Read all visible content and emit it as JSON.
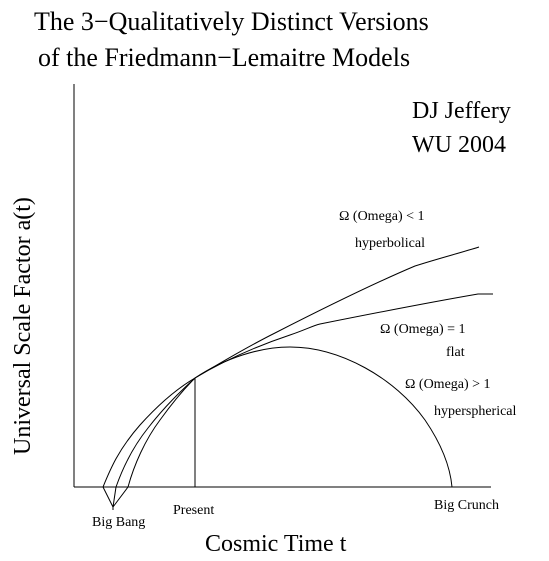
{
  "title": {
    "line1": "The 3−Qualitatively Distinct Versions",
    "line2": "of the Friedmann−Lemaitre Models"
  },
  "credit": {
    "line1": "DJ Jeffery",
    "line2": "WU 2004"
  },
  "axes": {
    "xlabel": "Cosmic Time t",
    "ylabel": "Universal Scale Factor a(t)"
  },
  "markers": {
    "present": "Present",
    "big_bang": "Big Bang",
    "big_crunch": "Big Crunch"
  },
  "curves": {
    "hyperbolic": {
      "condition": "Ω (Omega) < 1",
      "name": "hyperbolical"
    },
    "flat": {
      "condition": "Ω (Omega) = 1",
      "name": "flat"
    },
    "hyperspherical": {
      "condition": "Ω (Omega) > 1",
      "name": "hyperspherical"
    }
  }
}
